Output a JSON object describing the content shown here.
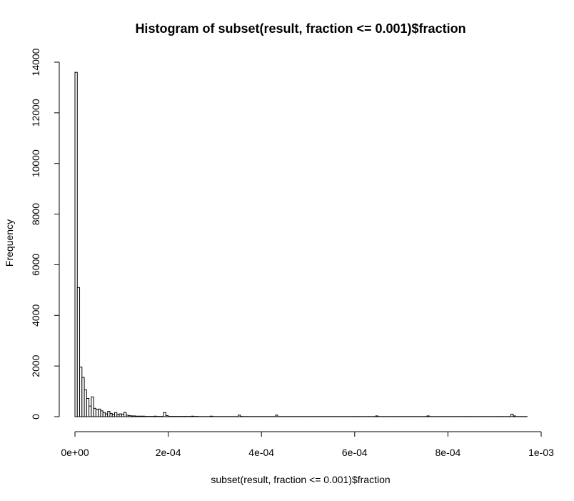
{
  "chart_data": {
    "type": "bar",
    "title": "Histogram of subset(result, fraction <= 0.001)$fraction",
    "xlabel": "subset(result, fraction <= 0.001)$fraction",
    "ylabel": "Frequency",
    "xlim": [
      0,
      0.001
    ],
    "ylim": [
      0,
      14000
    ],
    "bin_width": 5e-06,
    "x_ticks": [
      {
        "value": 0,
        "label": "0e+00"
      },
      {
        "value": 0.0002,
        "label": "2e-04"
      },
      {
        "value": 0.0004,
        "label": "4e-04"
      },
      {
        "value": 0.0006,
        "label": "6e-04"
      },
      {
        "value": 0.0008,
        "label": "8e-04"
      },
      {
        "value": 0.001,
        "label": "1e-03"
      }
    ],
    "y_ticks": [
      {
        "value": 0,
        "label": "0"
      },
      {
        "value": 2000,
        "label": "2000"
      },
      {
        "value": 4000,
        "label": "4000"
      },
      {
        "value": 6000,
        "label": "6000"
      },
      {
        "value": 8000,
        "label": "8000"
      },
      {
        "value": 10000,
        "label": "10000"
      },
      {
        "value": 12000,
        "label": "12000"
      },
      {
        "value": 14000,
        "label": "14000"
      }
    ],
    "values": [
      13600,
      5100,
      1960,
      1550,
      1060,
      720,
      420,
      780,
      330,
      290,
      300,
      230,
      160,
      110,
      210,
      130,
      90,
      160,
      80,
      110,
      100,
      170,
      60,
      40,
      30,
      30,
      20,
      20,
      20,
      20,
      10,
      10,
      10,
      10,
      20,
      10,
      10,
      10,
      160,
      40,
      10,
      10,
      10,
      10,
      10,
      10,
      10,
      10,
      10,
      10,
      20,
      10,
      10,
      5,
      5,
      5,
      5,
      5,
      20,
      5,
      5,
      5,
      5,
      5,
      5,
      5,
      5,
      5,
      5,
      5,
      60,
      10,
      5,
      5,
      5,
      5,
      5,
      5,
      5,
      5,
      5,
      5,
      5,
      5,
      5,
      5,
      60,
      5,
      5,
      5,
      5,
      5,
      5,
      5,
      5,
      5,
      5,
      5,
      5,
      5,
      5,
      5,
      5,
      5,
      5,
      5,
      5,
      5,
      5,
      5,
      5,
      5,
      5,
      5,
      5,
      5,
      5,
      5,
      5,
      5,
      5,
      5,
      5,
      5,
      5,
      5,
      5,
      5,
      5,
      30,
      5,
      5,
      5,
      5,
      5,
      5,
      5,
      5,
      5,
      5,
      5,
      5,
      5,
      5,
      5,
      5,
      5,
      5,
      5,
      5,
      5,
      30,
      5,
      5,
      5,
      5,
      5,
      5,
      5,
      5,
      5,
      5,
      5,
      5,
      5,
      5,
      5,
      5,
      5,
      5,
      5,
      5,
      5,
      5,
      5,
      5,
      5,
      5,
      5,
      5,
      5,
      5,
      5,
      5,
      5,
      5,
      5,
      100,
      30,
      5,
      5,
      5,
      5,
      5
    ]
  }
}
